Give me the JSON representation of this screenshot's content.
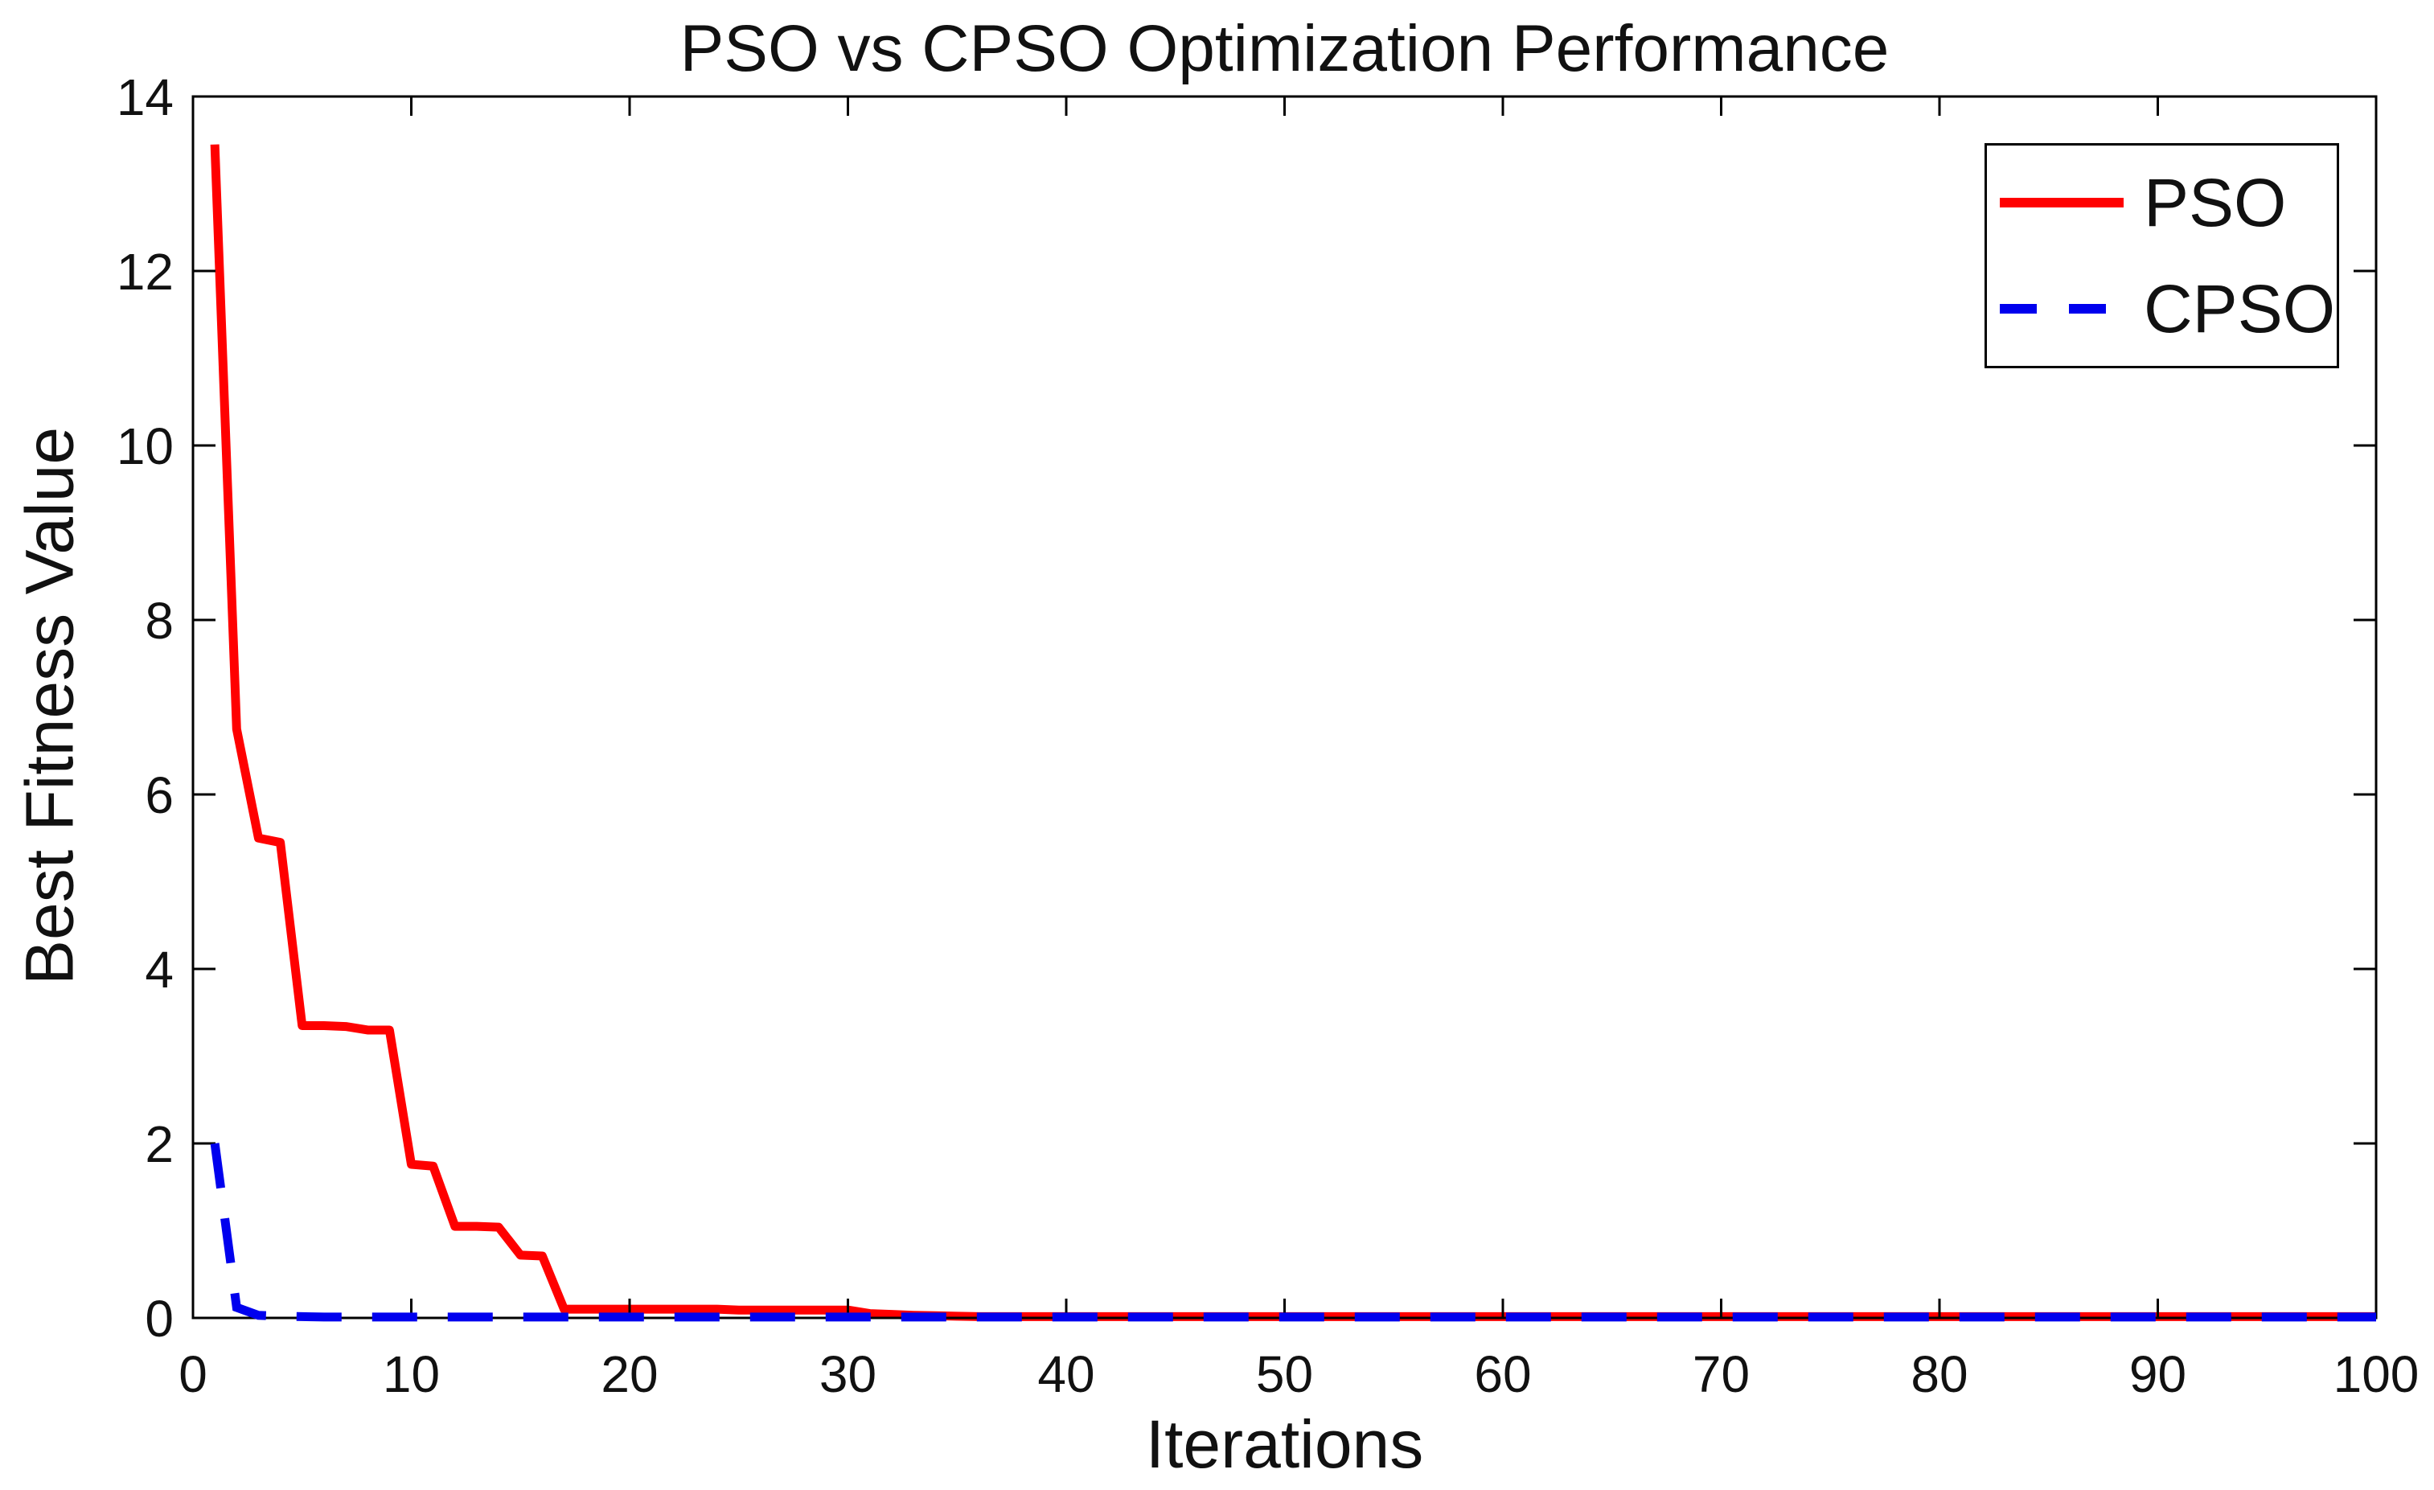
{
  "chart_data": {
    "type": "line",
    "title": "PSO vs CPSO Optimization Performance",
    "xlabel": "Iterations",
    "ylabel": "Best Fitness Value",
    "xlim": [
      0,
      100
    ],
    "ylim": [
      0,
      14
    ],
    "x_ticks": [
      0,
      10,
      20,
      30,
      40,
      50,
      60,
      70,
      80,
      90,
      100
    ],
    "y_ticks": [
      0,
      2,
      4,
      6,
      8,
      10,
      12,
      14
    ],
    "grid": false,
    "background": "#FFFFFF",
    "axis_color": "#000000",
    "tick_direction": "in",
    "legend": {
      "position": "top-right",
      "border": true,
      "entries": [
        "PSO",
        "CPSO"
      ]
    },
    "series": [
      {
        "name": "PSO",
        "color": "#FF0000",
        "style": "solid",
        "line_width": 11,
        "x": [
          1,
          2,
          3,
          4,
          5,
          6,
          7,
          8,
          9,
          10,
          11,
          12,
          13,
          14,
          15,
          16,
          17,
          18,
          19,
          20,
          21,
          22,
          23,
          24,
          25,
          26,
          27,
          28,
          29,
          30,
          31,
          32,
          33,
          34,
          35,
          36,
          37,
          38,
          39,
          40,
          41,
          42,
          43,
          44,
          45,
          46,
          47,
          48,
          49,
          50,
          51,
          52,
          53,
          54,
          55,
          56,
          57,
          58,
          59,
          60,
          61,
          62,
          63,
          64,
          65,
          66,
          67,
          68,
          69,
          70,
          71,
          72,
          73,
          74,
          75,
          76,
          77,
          78,
          79,
          80,
          81,
          82,
          83,
          84,
          85,
          86,
          87,
          88,
          89,
          90,
          91,
          92,
          93,
          94,
          95,
          96,
          97,
          98,
          99,
          100
        ],
        "y": [
          13.45,
          6.75,
          5.5,
          5.45,
          3.35,
          3.35,
          3.34,
          3.3,
          3.3,
          1.76,
          1.74,
          1.05,
          1.05,
          1.04,
          0.72,
          0.71,
          0.1,
          0.1,
          0.1,
          0.1,
          0.1,
          0.1,
          0.1,
          0.1,
          0.09,
          0.09,
          0.09,
          0.09,
          0.09,
          0.09,
          0.05,
          0.04,
          0.03,
          0.025,
          0.02,
          0.015,
          0.015,
          0.015,
          0.015,
          0.015,
          0.015,
          0.015,
          0.015,
          0.015,
          0.015,
          0.015,
          0.015,
          0.015,
          0.015,
          0.015,
          0.015,
          0.015,
          0.015,
          0.015,
          0.015,
          0.015,
          0.015,
          0.015,
          0.015,
          0.015,
          0.015,
          0.015,
          0.015,
          0.015,
          0.015,
          0.015,
          0.015,
          0.015,
          0.015,
          0.015,
          0.015,
          0.015,
          0.015,
          0.015,
          0.015,
          0.015,
          0.015,
          0.015,
          0.015,
          0.015,
          0.015,
          0.015,
          0.015,
          0.015,
          0.015,
          0.015,
          0.015,
          0.015,
          0.015,
          0.015,
          0.015,
          0.015,
          0.015,
          0.015,
          0.015,
          0.015,
          0.015,
          0.015,
          0.015,
          0.015
        ]
      },
      {
        "name": "CPSO",
        "color": "#0000EE",
        "style": "dashed",
        "line_width": 11,
        "x": [
          1,
          2,
          3,
          4,
          5,
          6,
          7,
          8,
          9,
          10,
          11,
          12,
          13,
          14,
          15,
          16,
          17,
          18,
          19,
          20,
          21,
          22,
          23,
          24,
          25,
          26,
          27,
          28,
          29,
          30,
          31,
          32,
          33,
          34,
          35,
          36,
          37,
          38,
          39,
          40,
          41,
          42,
          43,
          44,
          45,
          46,
          47,
          48,
          49,
          50,
          51,
          52,
          53,
          54,
          55,
          56,
          57,
          58,
          59,
          60,
          61,
          62,
          63,
          64,
          65,
          66,
          67,
          68,
          69,
          70,
          71,
          72,
          73,
          74,
          75,
          76,
          77,
          78,
          79,
          80,
          81,
          82,
          83,
          84,
          85,
          86,
          87,
          88,
          89,
          90,
          91,
          92,
          93,
          94,
          95,
          96,
          97,
          98,
          99,
          100
        ],
        "y": [
          2.0,
          0.12,
          0.03,
          0.02,
          0.015,
          0.01,
          0.01,
          0.01,
          0.01,
          0.01,
          0.01,
          0.01,
          0.01,
          0.01,
          0.01,
          0.01,
          0.01,
          0.01,
          0.01,
          0.01,
          0.01,
          0.01,
          0.01,
          0.01,
          0.01,
          0.01,
          0.01,
          0.01,
          0.01,
          0.01,
          0.01,
          0.01,
          0.01,
          0.01,
          0.01,
          0.01,
          0.01,
          0.01,
          0.01,
          0.01,
          0.01,
          0.01,
          0.01,
          0.01,
          0.01,
          0.01,
          0.01,
          0.01,
          0.01,
          0.01,
          0.01,
          0.01,
          0.01,
          0.01,
          0.01,
          0.01,
          0.01,
          0.01,
          0.01,
          0.01,
          0.01,
          0.01,
          0.01,
          0.01,
          0.01,
          0.01,
          0.01,
          0.01,
          0.01,
          0.01,
          0.01,
          0.01,
          0.01,
          0.01,
          0.01,
          0.01,
          0.01,
          0.01,
          0.01,
          0.01,
          0.01,
          0.01,
          0.01,
          0.01,
          0.01,
          0.01,
          0.01,
          0.01,
          0.01,
          0.01,
          0.01,
          0.01,
          0.01,
          0.01,
          0.01,
          0.01,
          0.01,
          0.01,
          0.01,
          0.01
        ]
      }
    ]
  }
}
